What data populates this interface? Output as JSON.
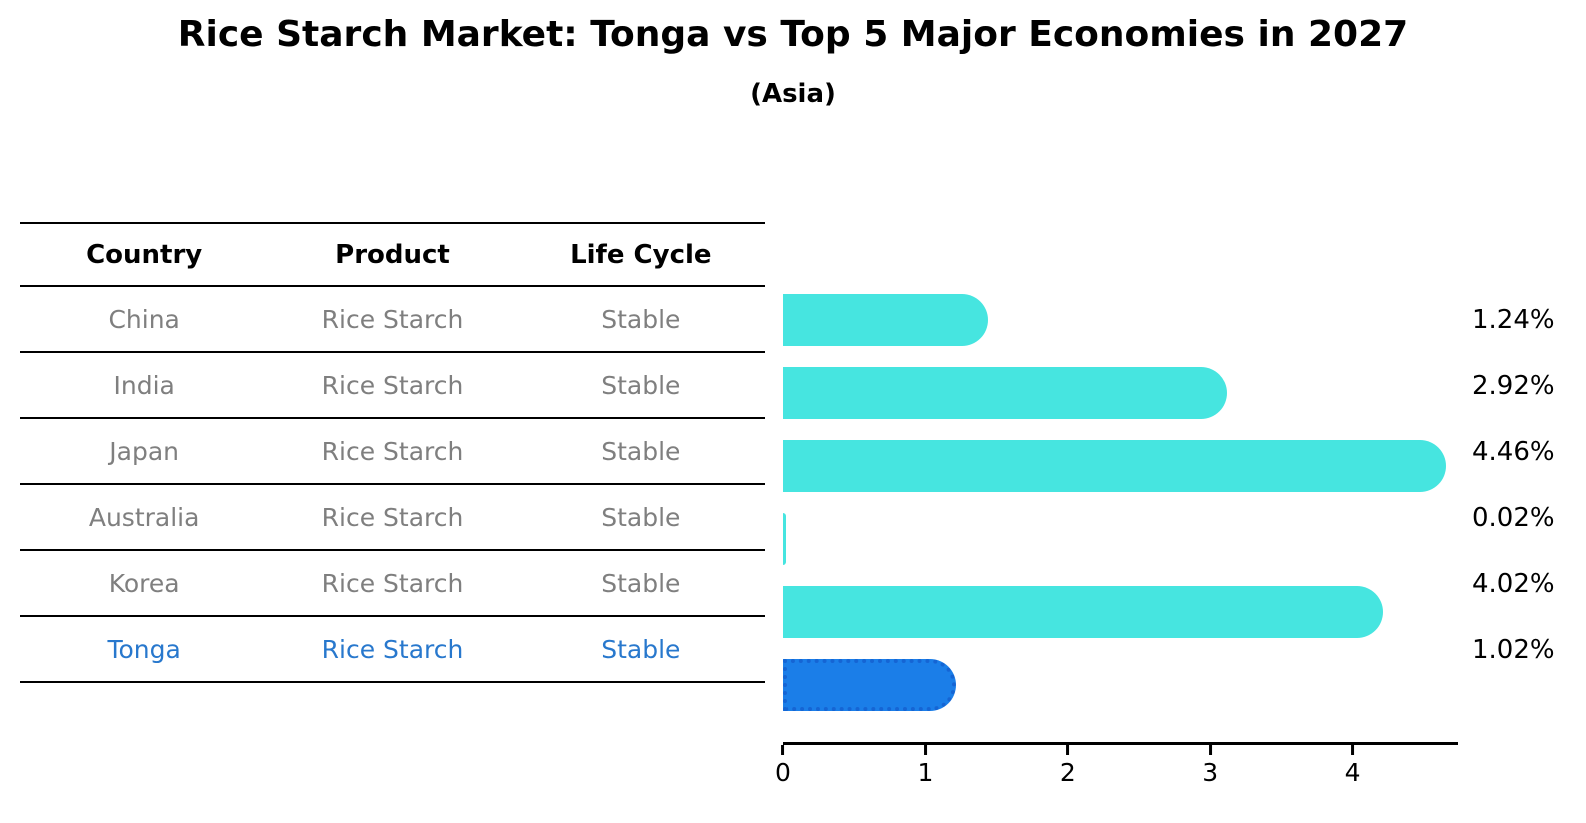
{
  "header": {
    "title": "Rice Starch Market: Tonga vs Top 5 Major Economies in 2027",
    "subtitle": "(Asia)"
  },
  "table": {
    "headers": [
      "Country",
      "Product",
      "Life Cycle"
    ],
    "rows": [
      {
        "country": "China",
        "product": "Rice Starch",
        "life_cycle": "Stable",
        "highlight": false
      },
      {
        "country": "India",
        "product": "Rice Starch",
        "life_cycle": "Stable",
        "highlight": false
      },
      {
        "country": "Japan",
        "product": "Rice Starch",
        "life_cycle": "Stable",
        "highlight": false
      },
      {
        "country": "Australia",
        "product": "Rice Starch",
        "life_cycle": "Stable",
        "highlight": false
      },
      {
        "country": "Korea",
        "product": "Rice Starch",
        "life_cycle": "Stable",
        "highlight": false
      },
      {
        "country": "Tonga",
        "product": "Rice Starch",
        "life_cycle": "Stable",
        "highlight": true
      }
    ]
  },
  "chart_data": {
    "type": "bar",
    "orientation": "horizontal",
    "title": "Rice Starch Market: Tonga vs Top 5 Major Economies in 2027 (Asia)",
    "categories": [
      "China",
      "India",
      "Japan",
      "Australia",
      "Korea",
      "Tonga"
    ],
    "values": [
      1.24,
      2.92,
      4.46,
      0.02,
      4.02,
      1.02
    ],
    "value_labels": [
      "1.24%",
      "2.92%",
      "4.46%",
      "0.02%",
      "4.02%",
      "1.02%"
    ],
    "unit": "percent",
    "xticks": [
      "0",
      "1",
      "2",
      "3",
      "4"
    ],
    "xlim": [
      0,
      4.74
    ],
    "grid": false,
    "legend": false,
    "highlight_index": 5,
    "colors": {
      "bar": "#46e5e0",
      "highlight_bar": "#1b7ee8",
      "highlight_bar_border": "#1565d4",
      "highlight_text": "#2878cd",
      "table_text": "#7f7f7f",
      "axis": "#000000"
    }
  }
}
